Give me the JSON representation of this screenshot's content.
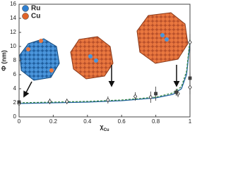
{
  "chart_data": {
    "type": "scatter",
    "y_label": "Φ (nm)",
    "x_label": "χ",
    "x_label_sub": "Cu",
    "xlim": [
      0,
      1
    ],
    "ylim": [
      0,
      16
    ],
    "xticks": [
      0,
      0.2,
      0.4,
      0.6,
      0.8,
      1
    ],
    "yticks": [
      0,
      2,
      4,
      6,
      8,
      10,
      12,
      14,
      16
    ],
    "legend": [
      {
        "label": "Ru",
        "color": "#2f7fd0"
      },
      {
        "label": "Cu",
        "color": "#e0642a"
      }
    ],
    "series": [
      {
        "marker": "diamond",
        "color": "#333333",
        "x": [
          0,
          0.18,
          0.28,
          0.52,
          0.68,
          0.77,
          0.93,
          1.0,
          1.0
        ],
        "values": [
          1.9,
          2.2,
          2.2,
          2.4,
          2.9,
          2.8,
          3.3,
          4.2,
          10.6
        ],
        "errors": [
          0.3,
          0.4,
          0.4,
          0.5,
          0.6,
          0.8,
          0.5,
          1.0,
          1.2
        ]
      },
      {
        "marker": "square",
        "color": "#333333",
        "x": [
          0,
          0.8,
          0.92,
          1.0
        ],
        "values": [
          2.1,
          3.3,
          3.5,
          5.5
        ],
        "errors": [
          0.2,
          1.0,
          0.5,
          0.8
        ]
      }
    ],
    "lines": [
      {
        "style": "solid",
        "color": "#1f5f9f",
        "x": [
          0,
          0.2,
          0.4,
          0.6,
          0.8,
          0.9,
          0.95,
          0.98,
          1.0
        ],
        "values": [
          1.9,
          2.0,
          2.1,
          2.3,
          2.7,
          3.2,
          4.0,
          6.0,
          10.5
        ]
      },
      {
        "style": "dashed",
        "color": "#3a8a4a",
        "x": [
          0,
          0.2,
          0.4,
          0.6,
          0.8,
          0.9,
          0.95,
          0.98,
          1.0
        ],
        "values": [
          2.0,
          2.1,
          2.2,
          2.4,
          2.8,
          3.4,
          4.3,
          6.5,
          11
        ]
      }
    ]
  }
}
